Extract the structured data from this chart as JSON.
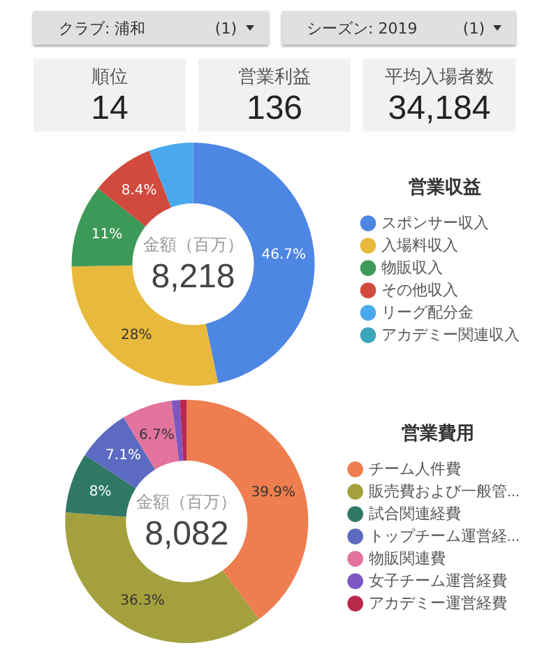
{
  "chart_data": [
    {
      "type": "other",
      "annotations": [
        "クラブ: 浦和",
        "(1)",
        "シーズン: 2019",
        "(1)",
        "順位",
        "14",
        "営業利益",
        "136",
        "平均入場者数",
        "34,184"
      ]
    },
    {
      "type": "donut",
      "legend_title": "営業収益",
      "legend": "right",
      "categories": [
        "スポンサー収入",
        "入場料収入",
        "物販収入",
        "その他収入",
        "リーグ配分金",
        "アカデミー関連収入"
      ],
      "values": [
        46.7,
        28,
        11,
        8.4,
        5.9,
        0
      ],
      "colors": [
        "#4e86e4",
        "#e8b93c",
        "#3d9957",
        "#d24a3d",
        "#4aa9ee",
        "#3ba6b7"
      ],
      "value_labels": [
        "46.7%",
        "28%",
        "11%",
        "8.4%",
        null,
        null
      ],
      "annotations": [
        "金額（百万）",
        "8,218"
      ]
    },
    {
      "type": "donut",
      "legend_title": "営業費用",
      "legend": "right",
      "categories": [
        "チーム人件費",
        "販売費および一般管...",
        "試合関連経費",
        "トップチーム運営経...",
        "物販関連費",
        "女子チーム運営経費",
        "アカデミー運営経費"
      ],
      "values": [
        39.9,
        36.3,
        8,
        7.1,
        6.7,
        1.1,
        0.9
      ],
      "colors": [
        "#ee7d4f",
        "#a4a03e",
        "#2f7866",
        "#5c6bc1",
        "#e2739c",
        "#7e57c2",
        "#b8294a"
      ],
      "value_labels": [
        "39.9%",
        "36.3%",
        "8%",
        "7.1%",
        "6.7%",
        null,
        null
      ],
      "annotations": [
        "金額（百万）",
        "8,082"
      ]
    }
  ]
}
